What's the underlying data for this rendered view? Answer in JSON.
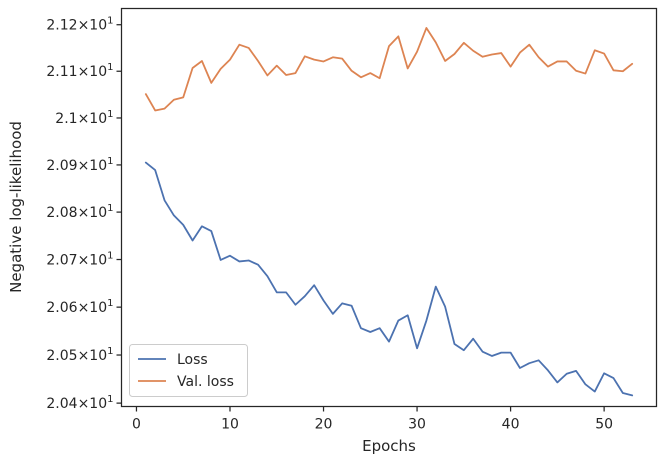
{
  "chart_data": {
    "type": "line",
    "xlabel": "Epochs",
    "ylabel": "Negative log-likelihood",
    "xlim": [
      -1.6,
      55.6
    ],
    "ylim": [
      20.393,
      21.235
    ],
    "y_scale": "log",
    "grid": false,
    "legend_position": "lower-left",
    "x_ticks": [
      0,
      10,
      20,
      30,
      40,
      50
    ],
    "x_tick_labels": [
      "0",
      "10",
      "20",
      "30",
      "40",
      "50"
    ],
    "y_ticks": [
      {
        "value": 21.2,
        "mantissa": "2.12"
      },
      {
        "value": 21.1,
        "mantissa": "2.11"
      },
      {
        "value": 21.0,
        "mantissa": "2.1"
      },
      {
        "value": 20.9,
        "mantissa": "2.09"
      },
      {
        "value": 20.8,
        "mantissa": "2.08"
      },
      {
        "value": 20.7,
        "mantissa": "2.07"
      },
      {
        "value": 20.6,
        "mantissa": "2.06"
      },
      {
        "value": 20.5,
        "mantissa": "2.05"
      },
      {
        "value": 20.4,
        "mantissa": "2.04"
      }
    ],
    "tick_times": "×",
    "tick_base": "10",
    "tick_exp": "1",
    "x": [
      1,
      2,
      3,
      4,
      5,
      6,
      7,
      8,
      9,
      10,
      11,
      12,
      13,
      14,
      15,
      16,
      17,
      18,
      19,
      20,
      21,
      22,
      23,
      24,
      25,
      26,
      27,
      28,
      29,
      30,
      31,
      32,
      33,
      34,
      35,
      36,
      37,
      38,
      39,
      40,
      41,
      42,
      43,
      44,
      45,
      46,
      47,
      48,
      49,
      50,
      51,
      52,
      53
    ],
    "series": [
      {
        "name": "Loss",
        "color": "#4c72b0",
        "values": [
          20.905,
          20.889,
          20.825,
          20.793,
          20.773,
          20.74,
          20.77,
          20.76,
          20.699,
          20.708,
          20.696,
          20.698,
          20.689,
          20.665,
          20.631,
          20.631,
          20.605,
          20.623,
          20.646,
          20.614,
          20.586,
          20.608,
          20.603,
          20.556,
          20.548,
          20.556,
          20.528,
          20.572,
          20.583,
          20.514,
          20.572,
          20.643,
          20.601,
          20.523,
          20.51,
          20.534,
          20.507,
          20.498,
          20.505,
          20.505,
          20.473,
          20.483,
          20.489,
          20.468,
          20.443,
          20.461,
          20.467,
          20.439,
          20.424,
          20.462,
          20.452,
          20.421,
          20.416
        ]
      },
      {
        "name": "Val. loss",
        "color": "#dd8452",
        "values": [
          21.051,
          21.016,
          21.02,
          21.039,
          21.044,
          21.107,
          21.122,
          21.075,
          21.105,
          21.125,
          21.157,
          21.15,
          21.122,
          21.091,
          21.112,
          21.092,
          21.096,
          21.132,
          21.125,
          21.121,
          21.13,
          21.127,
          21.101,
          21.087,
          21.096,
          21.085,
          21.154,
          21.175,
          21.106,
          21.142,
          21.193,
          21.162,
          21.122,
          21.137,
          21.161,
          21.144,
          21.131,
          21.136,
          21.139,
          21.11,
          21.14,
          21.157,
          21.13,
          21.11,
          21.121,
          21.121,
          21.101,
          21.095,
          21.145,
          21.138,
          21.102,
          21.1,
          21.116
        ]
      }
    ]
  }
}
